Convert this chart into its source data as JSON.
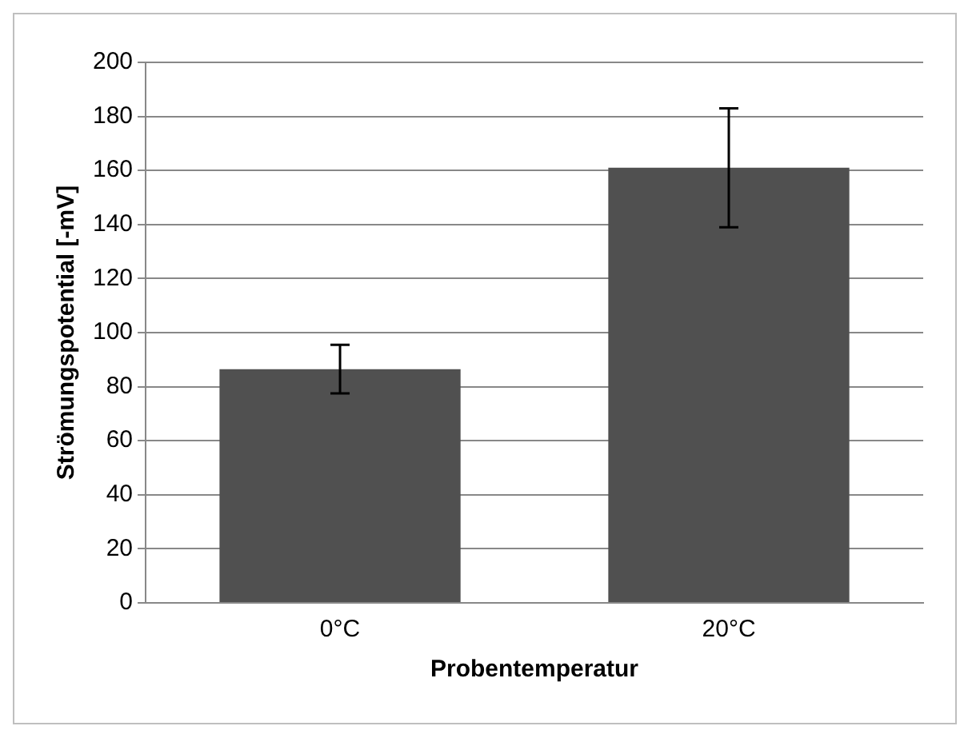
{
  "chart_data": {
    "type": "bar",
    "xlabel": "Probentemperatur",
    "ylabel": "Strömungspotential [-mV]",
    "categories": [
      "0°C",
      "20°C"
    ],
    "values": [
      86.5,
      161
    ],
    "errors": [
      9,
      22
    ],
    "color": "#505050",
    "ylim": [
      0,
      200
    ],
    "yticks": [
      0,
      20,
      40,
      60,
      80,
      100,
      120,
      140,
      160,
      180,
      200
    ],
    "grid": "y",
    "legend": false
  }
}
